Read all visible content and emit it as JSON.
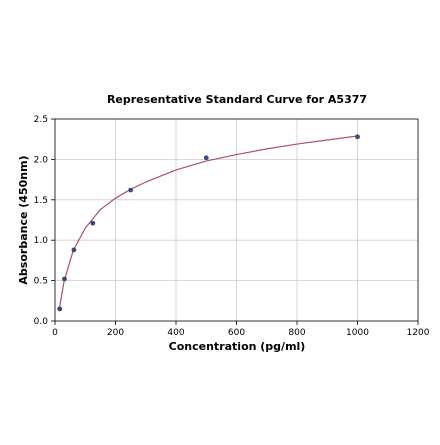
{
  "chart_data": {
    "type": "scatter",
    "title": "Representative Standard Curve for A5377",
    "xlabel": "Concentration (pg/ml)",
    "ylabel": "Absorbance (450nm)",
    "xlim": [
      0,
      1200
    ],
    "ylim": [
      0,
      2.5
    ],
    "xticks": [
      "0",
      "200",
      "400",
      "600",
      "800",
      "1000",
      "1200"
    ],
    "yticks": [
      "0.0",
      "0.5",
      "1.0",
      "1.5",
      "2.0",
      "2.5"
    ],
    "grid": true,
    "legend": "none",
    "series": [
      {
        "x": [
          15.6,
          31.25,
          62.5,
          125,
          250,
          500,
          1000
        ],
        "y": [
          0.15,
          0.52,
          0.88,
          1.21,
          1.62,
          2.02,
          2.28
        ]
      }
    ],
    "fit_curve": {
      "x": [
        15.6,
        30,
        60,
        100,
        150,
        200,
        250,
        300,
        400,
        500,
        600,
        700,
        800,
        900,
        1000
      ],
      "y": [
        0.18,
        0.49,
        0.87,
        1.15,
        1.38,
        1.52,
        1.63,
        1.72,
        1.87,
        1.98,
        2.06,
        2.13,
        2.19,
        2.24,
        2.29
      ]
    },
    "colors": {
      "point": "#3a4a7a",
      "curve": "#b0506a",
      "grid": "#cccccc",
      "axis": "#000000"
    }
  }
}
